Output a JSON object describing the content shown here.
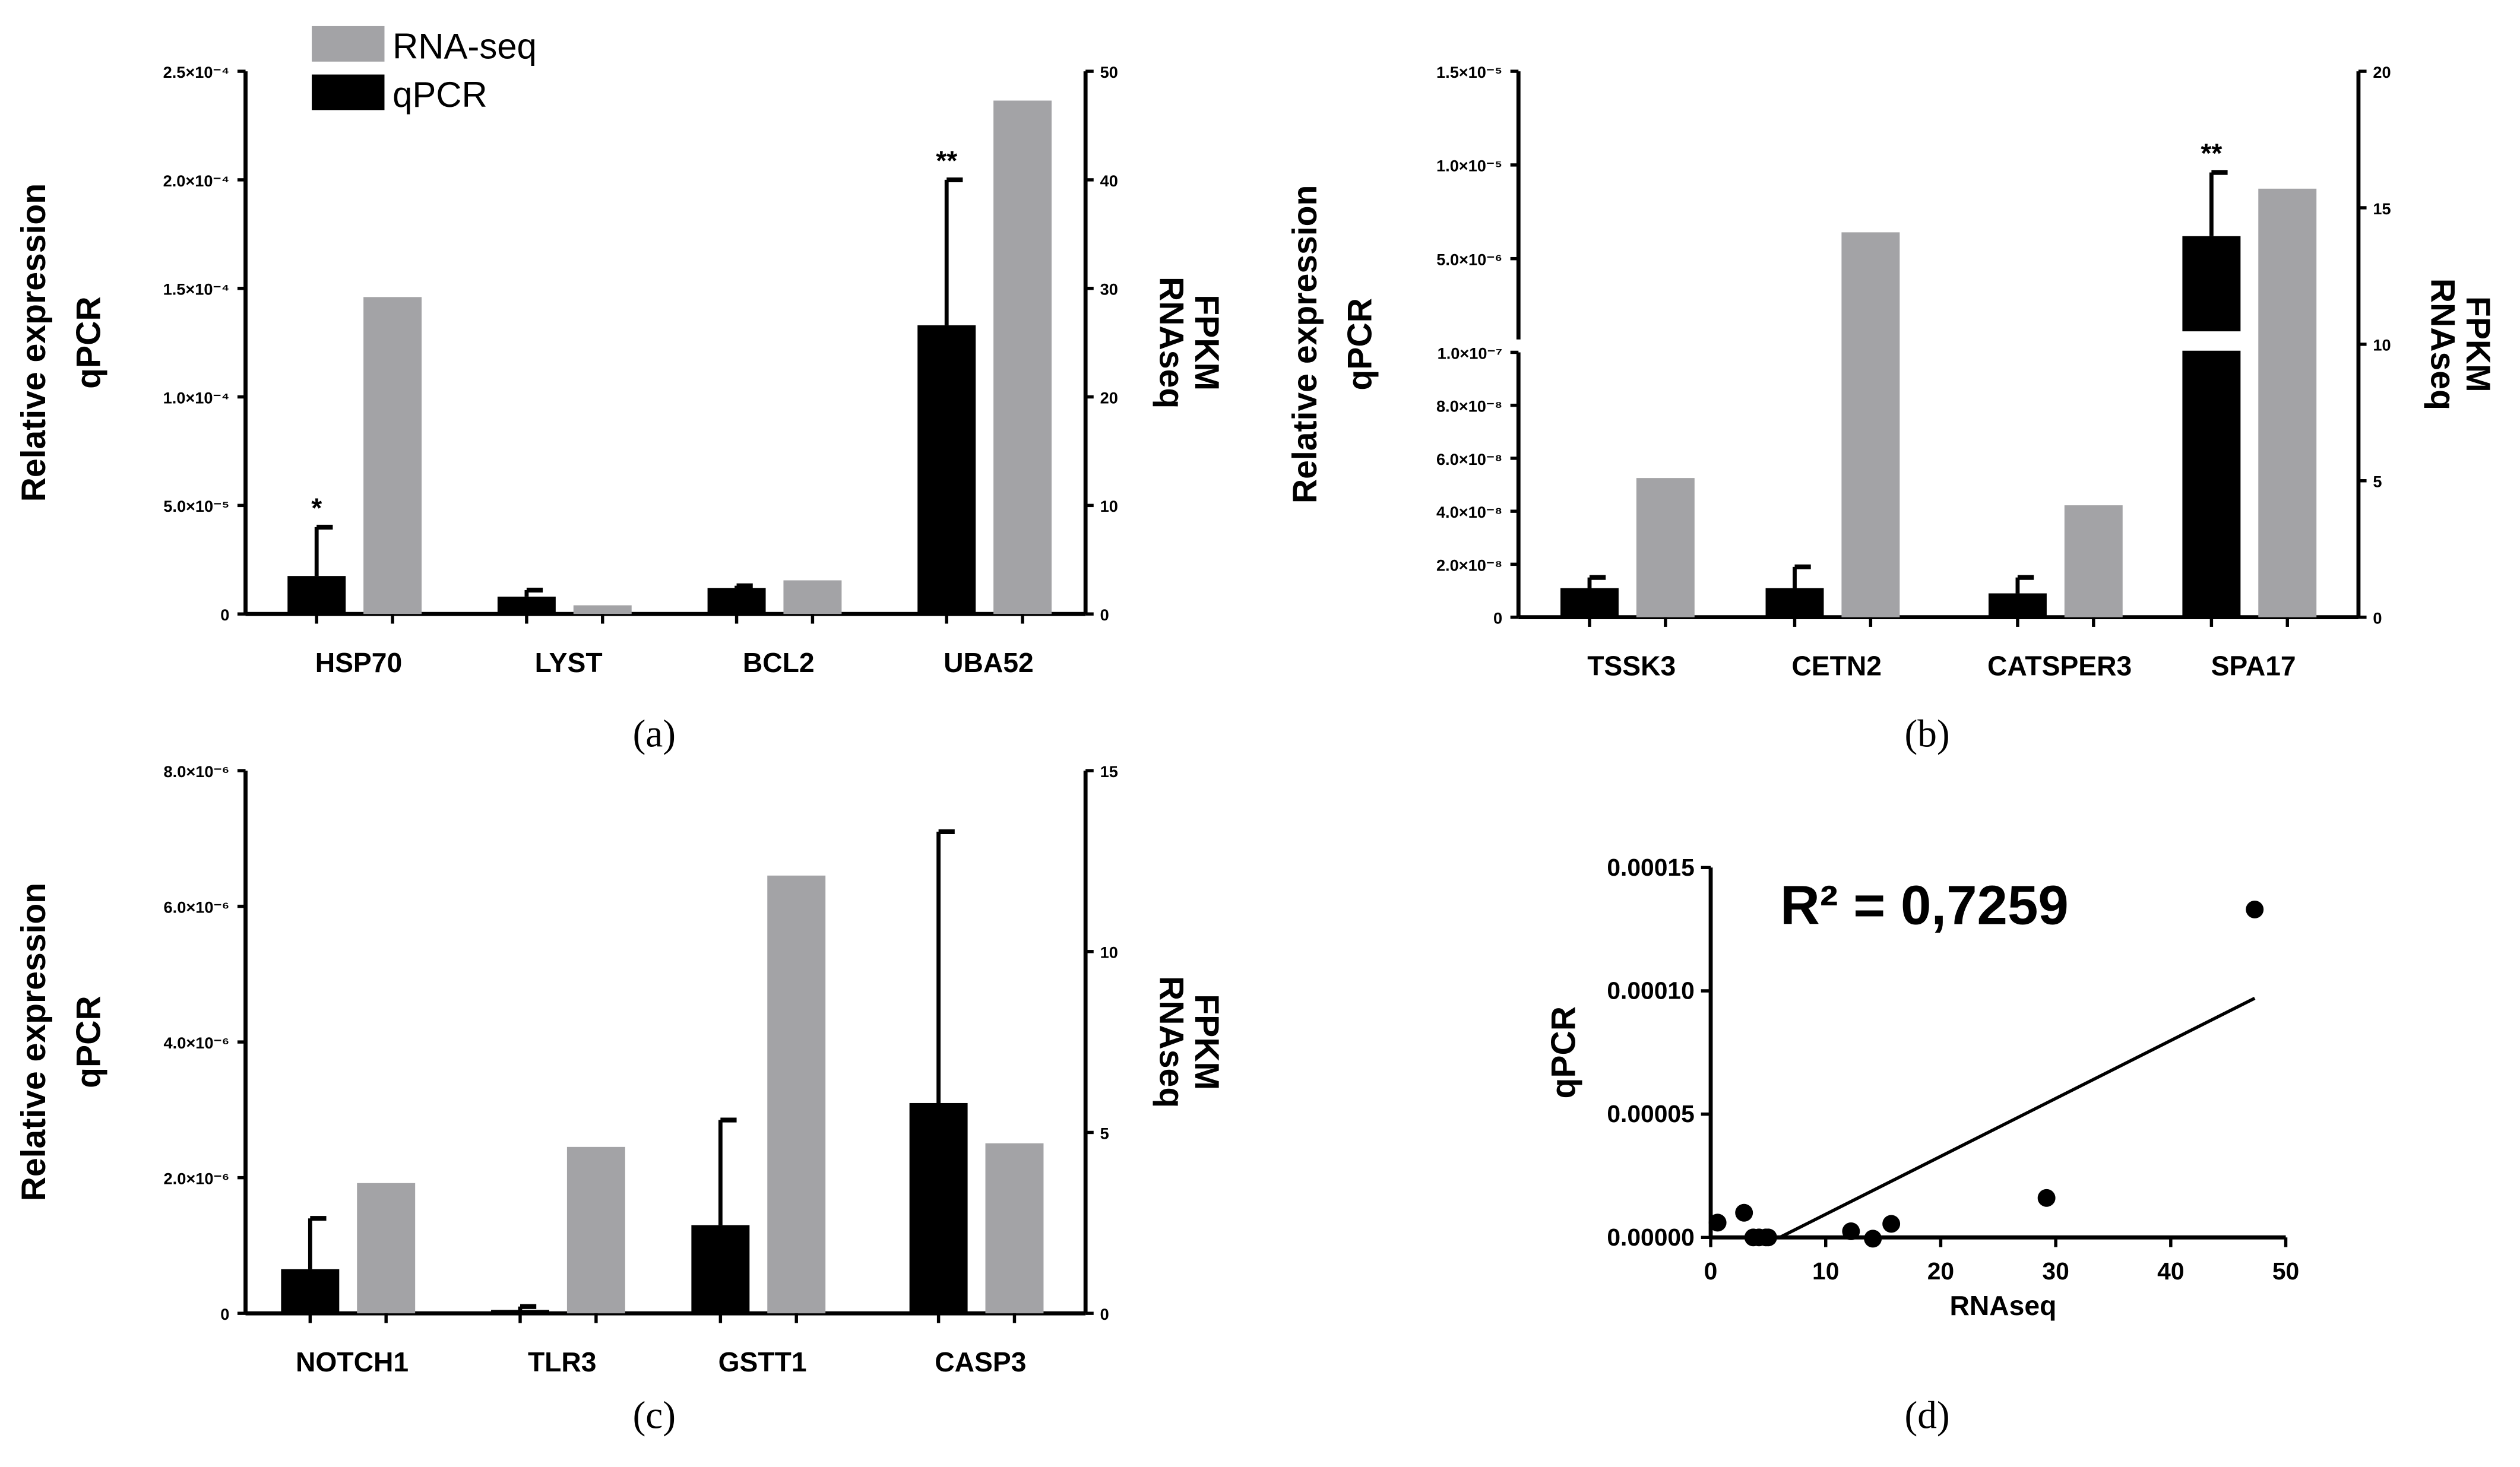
{
  "colors": {
    "qpcr": "#000000",
    "rnaseq": "#a3a3a6"
  },
  "legend": {
    "rnaseq": "RNA-seq",
    "qpcr": "qPCR",
    "placement": "top-left (panel a)"
  },
  "chart_data": [
    {
      "type": "bar",
      "panel_label": "(a)",
      "ylabel_left": [
        "Relative expression",
        "qPCR"
      ],
      "ylabel_right": [
        "FPKM",
        "RNAseq"
      ],
      "categories": [
        "HSP70",
        "LYST",
        "BCL2",
        "UBA52"
      ],
      "yticks_left": [
        "0",
        "5.0×10⁻⁵",
        "1.0×10⁻⁴",
        "1.5×10⁻⁴",
        "2.0×10⁻⁴",
        "2.5×10⁻⁴"
      ],
      "ylim_left": [
        0,
        0.00025
      ],
      "yticks_right": [
        "0",
        "10",
        "20",
        "30",
        "40",
        "50"
      ],
      "ylim_right": [
        0,
        50
      ],
      "series": [
        {
          "name": "qPCR",
          "axis": "left",
          "values": [
            1.75e-05,
            8e-06,
            1.2e-05,
            0.000133
          ],
          "error_upper": [
            4e-05,
            1.1e-05,
            1.3e-05,
            0.0002
          ]
        },
        {
          "name": "RNA-seq",
          "axis": "right",
          "values": [
            29.2,
            0.8,
            3.1,
            47.3
          ]
        }
      ],
      "annotations": [
        "*",
        "",
        "",
        "**"
      ]
    },
    {
      "type": "bar",
      "panel_label": "(b)",
      "ylabel_left": [
        "Relative expression",
        "qPCR"
      ],
      "ylabel_right": [
        "FPKM",
        "RNAseq"
      ],
      "categories": [
        "TSSK3",
        "CETN2",
        "CATSPER3",
        "SPA17"
      ],
      "yticks_left": [
        "0",
        "2.0×10⁻⁸",
        "4.0×10⁻⁸",
        "6.0×10⁻⁸",
        "8.0×10⁻⁸",
        "1.0×10⁻⁷",
        "5.0×10⁻⁶",
        "1.0×10⁻⁵",
        "1.5×10⁻⁵"
      ],
      "axis_break": true,
      "ylim_left_lower": [
        0,
        1e-07
      ],
      "ylim_left_upper": [
        0,
        1.5e-05
      ],
      "yticks_right": [
        "0",
        "5",
        "10",
        "15",
        "20"
      ],
      "ylim_right": [
        0,
        20
      ],
      "series": [
        {
          "name": "qPCR",
          "axis": "left",
          "values": [
            1.1e-08,
            1.1e-08,
            9e-09,
            6.2e-06
          ],
          "error_upper": [
            1.5e-08,
            1.9e-08,
            1.5e-08,
            9.6e-06
          ]
        },
        {
          "name": "RNA-seq",
          "axis": "right",
          "values": [
            5.1,
            14.1,
            4.1,
            15.7
          ]
        }
      ],
      "annotations": [
        "",
        "",
        "",
        "**"
      ]
    },
    {
      "type": "bar",
      "panel_label": "(c)",
      "ylabel_left": [
        "Relative expression",
        "qPCR"
      ],
      "ylabel_right": [
        "FPKM",
        "RNAseq"
      ],
      "categories": [
        "NOTCH1",
        "TLR3",
        "GSTT1",
        "CASP3"
      ],
      "yticks_left": [
        "0",
        "2.0×10⁻⁶",
        "4.0×10⁻⁶",
        "6.0×10⁻⁶",
        "8.0×10⁻⁶"
      ],
      "ylim_left": [
        0,
        8e-06
      ],
      "yticks_right": [
        "0",
        "5",
        "10",
        "15"
      ],
      "ylim_right": [
        0,
        15
      ],
      "series": [
        {
          "name": "qPCR",
          "axis": "left",
          "values": [
            6.5e-07,
            5e-08,
            1.3e-06,
            3.1e-06
          ],
          "error_upper": [
            1.4e-06,
            1e-07,
            2.85e-06,
            7.1e-06
          ]
        },
        {
          "name": "RNA-seq",
          "axis": "right",
          "values": [
            3.6,
            4.6,
            12.1,
            4.7
          ]
        }
      ],
      "annotations": [
        "",
        "",
        "",
        ""
      ]
    },
    {
      "type": "scatter",
      "panel_label": "(d)",
      "xlabel": "RNAseq",
      "ylabel": "qPCR",
      "annotation": "R² = 0,7259",
      "xlim": [
        0,
        50
      ],
      "ylim": [
        0,
        0.00015
      ],
      "xticks": [
        "0",
        "10",
        "20",
        "30",
        "40",
        "50"
      ],
      "yticks": [
        "0.00000",
        "0.00005",
        "0.00010",
        "0.00015"
      ],
      "points": [
        [
          0.6,
          6e-06
        ],
        [
          2.9,
          1e-05
        ],
        [
          3.7,
          0
        ],
        [
          4.2,
          0
        ],
        [
          4.8,
          0
        ],
        [
          5.0,
          0
        ],
        [
          12.2,
          2.5e-06
        ],
        [
          14.1,
          -5e-07
        ],
        [
          15.7,
          5.5e-06
        ],
        [
          29.2,
          1.6e-05
        ],
        [
          47.3,
          0.000133
        ]
      ],
      "fit_line": [
        [
          6,
          0
        ],
        [
          47.3,
          9.7e-05
        ]
      ]
    }
  ]
}
